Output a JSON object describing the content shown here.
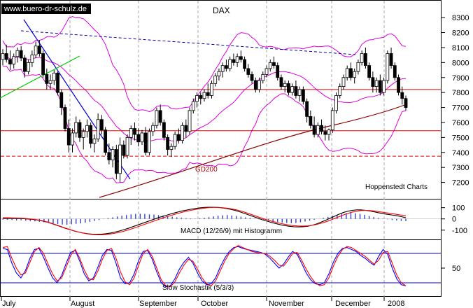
{
  "watermark": "www.buero-dr-schulz.de",
  "credit": "Hoppenstedt Charts",
  "chart_data": [
    {
      "type": "candlestick",
      "title": "DAX",
      "ylim": [
        7100,
        8380
      ],
      "ticks": [
        7200,
        7300,
        7400,
        7500,
        7600,
        7700,
        7800,
        7900,
        8000,
        8100,
        8200,
        8300
      ],
      "x_tick_labels": [
        "July",
        "August",
        "September",
        "October",
        "November",
        "December",
        "2008"
      ],
      "annotations": [
        {
          "text": "GD200"
        }
      ],
      "horizontal_lines": [
        7820,
        7545
      ],
      "dashed_levels": [
        7375
      ],
      "candles": [
        [
          8020,
          8090,
          7980,
          8060
        ],
        [
          8060,
          8120,
          8000,
          8020
        ],
        [
          8020,
          8080,
          7950,
          7990
        ],
        [
          7990,
          8060,
          7960,
          8040
        ],
        [
          8040,
          8100,
          8000,
          8080
        ],
        [
          8080,
          8110,
          8010,
          8030
        ],
        [
          8030,
          8050,
          7900,
          7940
        ],
        [
          7940,
          8020,
          7920,
          8000
        ],
        [
          8000,
          8080,
          7970,
          8050
        ],
        [
          8050,
          8140,
          8030,
          8110
        ],
        [
          8110,
          8150,
          8040,
          8060
        ],
        [
          8060,
          8080,
          7900,
          7920
        ],
        [
          7920,
          7960,
          7820,
          7860
        ],
        [
          7860,
          7920,
          7820,
          7880
        ],
        [
          7880,
          7950,
          7850,
          7930
        ],
        [
          7930,
          7940,
          7780,
          7800
        ],
        [
          7800,
          7820,
          7650,
          7700
        ],
        [
          7700,
          7720,
          7540,
          7560
        ],
        [
          7560,
          7620,
          7400,
          7450
        ],
        [
          7450,
          7560,
          7400,
          7530
        ],
        [
          7530,
          7640,
          7500,
          7600
        ],
        [
          7600,
          7620,
          7470,
          7500
        ],
        [
          7500,
          7560,
          7420,
          7540
        ],
        [
          7540,
          7620,
          7500,
          7580
        ],
        [
          7580,
          7600,
          7430,
          7460
        ],
        [
          7460,
          7520,
          7400,
          7490
        ],
        [
          7490,
          7660,
          7470,
          7620
        ],
        [
          7620,
          7650,
          7520,
          7550
        ],
        [
          7550,
          7570,
          7380,
          7400
        ],
        [
          7400,
          7460,
          7320,
          7350
        ],
        [
          7350,
          7440,
          7300,
          7420
        ],
        [
          7420,
          7450,
          7220,
          7260
        ],
        [
          7260,
          7500,
          7200,
          7450
        ],
        [
          7450,
          7480,
          7360,
          7380
        ],
        [
          7380,
          7520,
          7360,
          7500
        ],
        [
          7500,
          7580,
          7450,
          7560
        ],
        [
          7560,
          7600,
          7480,
          7520
        ],
        [
          7520,
          7560,
          7440,
          7470
        ],
        [
          7470,
          7550,
          7450,
          7530
        ],
        [
          7530,
          7570,
          7380,
          7400
        ],
        [
          7400,
          7560,
          7380,
          7540
        ],
        [
          7540,
          7600,
          7510,
          7580
        ],
        [
          7580,
          7700,
          7560,
          7680
        ],
        [
          7680,
          7720,
          7580,
          7600
        ],
        [
          7600,
          7620,
          7480,
          7500
        ],
        [
          7500,
          7520,
          7380,
          7420
        ],
        [
          7420,
          7460,
          7370,
          7440
        ],
        [
          7440,
          7540,
          7420,
          7520
        ],
        [
          7520,
          7560,
          7460,
          7480
        ],
        [
          7480,
          7600,
          7460,
          7580
        ],
        [
          7580,
          7620,
          7500,
          7540
        ],
        [
          7540,
          7700,
          7520,
          7680
        ],
        [
          7680,
          7760,
          7660,
          7740
        ],
        [
          7740,
          7800,
          7700,
          7780
        ],
        [
          7780,
          7800,
          7720,
          7760
        ],
        [
          7760,
          7820,
          7740,
          7800
        ],
        [
          7800,
          7860,
          7760,
          7780
        ],
        [
          7780,
          7880,
          7760,
          7860
        ],
        [
          7860,
          7930,
          7840,
          7910
        ],
        [
          7910,
          7960,
          7880,
          7940
        ],
        [
          7940,
          8000,
          7900,
          7980
        ],
        [
          7980,
          8020,
          7940,
          7960
        ],
        [
          7960,
          8040,
          7940,
          8020
        ],
        [
          8020,
          8060,
          7980,
          8000
        ],
        [
          8000,
          8060,
          7970,
          8040
        ],
        [
          8040,
          8080,
          8000,
          8020
        ],
        [
          8020,
          8040,
          7940,
          7960
        ],
        [
          7960,
          7990,
          7900,
          7920
        ],
        [
          7920,
          7940,
          7860,
          7880
        ],
        [
          7880,
          7900,
          7800,
          7820
        ],
        [
          7820,
          7900,
          7800,
          7880
        ],
        [
          7880,
          7940,
          7860,
          7920
        ],
        [
          7920,
          7980,
          7900,
          7960
        ],
        [
          7960,
          8020,
          7940,
          8000
        ],
        [
          8000,
          8040,
          7960,
          7980
        ],
        [
          7980,
          8000,
          7880,
          7900
        ],
        [
          7900,
          7920,
          7820,
          7840
        ],
        [
          7840,
          7880,
          7800,
          7860
        ],
        [
          7860,
          7880,
          7780,
          7800
        ],
        [
          7800,
          7860,
          7780,
          7840
        ],
        [
          7840,
          7880,
          7760,
          7780
        ],
        [
          7780,
          7840,
          7740,
          7820
        ],
        [
          7820,
          7840,
          7720,
          7740
        ],
        [
          7740,
          7760,
          7600,
          7640
        ],
        [
          7640,
          7680,
          7560,
          7580
        ],
        [
          7580,
          7640,
          7500,
          7520
        ],
        [
          7520,
          7600,
          7500,
          7580
        ],
        [
          7580,
          7620,
          7520,
          7540
        ],
        [
          7540,
          7580,
          7480,
          7520
        ],
        [
          7520,
          7560,
          7480,
          7550
        ],
        [
          7550,
          7700,
          7530,
          7680
        ],
        [
          7680,
          7800,
          7660,
          7780
        ],
        [
          7780,
          7860,
          7760,
          7840
        ],
        [
          7840,
          7920,
          7820,
          7900
        ],
        [
          7900,
          7980,
          7880,
          7960
        ],
        [
          7960,
          8000,
          7880,
          7900
        ],
        [
          7900,
          7960,
          7860,
          7940
        ],
        [
          7940,
          8020,
          7920,
          8000
        ],
        [
          8000,
          8080,
          7980,
          8060
        ],
        [
          8060,
          8100,
          7960,
          7980
        ],
        [
          7980,
          8000,
          7880,
          7900
        ],
        [
          7900,
          7940,
          7800,
          7840
        ],
        [
          7840,
          7900,
          7800,
          7880
        ],
        [
          7880,
          7920,
          7780,
          7800
        ],
        [
          7800,
          7900,
          7780,
          7880
        ],
        [
          7880,
          8080,
          7860,
          8060
        ],
        [
          8060,
          8100,
          7960,
          7980
        ],
        [
          7980,
          8000,
          7880,
          7900
        ],
        [
          7900,
          7920,
          7780,
          7800
        ],
        [
          7800,
          7840,
          7720,
          7760
        ],
        [
          7760,
          7780,
          7680,
          7700
        ]
      ]
    },
    {
      "type": "line",
      "title": "MACD (12/26/9) mit Histogramm",
      "ylim": [
        -170,
        160
      ],
      "ticks": [
        100,
        0,
        -100
      ],
      "histogram": [
        -6,
        -8,
        -10,
        -14,
        -12,
        -16,
        -20,
        -22,
        -26,
        -30,
        -34,
        -40,
        -46,
        -50,
        -52,
        -48,
        -44,
        -40,
        -34,
        -26,
        -18,
        -10,
        -2,
        6,
        14,
        22,
        28,
        34,
        40,
        44,
        46,
        44,
        40,
        38,
        34,
        30,
        26,
        20,
        14,
        10,
        6,
        4,
        2,
        6,
        10,
        16,
        22,
        28,
        32,
        34,
        30,
        26,
        20,
        14,
        8,
        2,
        -4,
        -10,
        -16,
        -22,
        -28,
        -32,
        -36,
        -38,
        -36,
        -30,
        -24,
        -16,
        -8,
        0,
        8,
        18,
        28,
        38,
        46,
        52,
        54,
        50,
        44,
        36,
        26,
        16,
        8,
        2,
        -4,
        -10,
        -14,
        -18,
        -20
      ],
      "series": [
        {
          "name": "",
          "color": "#000000",
          "values": [
            5,
            5,
            5,
            4,
            3,
            1,
            -2,
            -6,
            -12,
            -20,
            -30,
            -42,
            -56,
            -70,
            -84,
            -96,
            -108,
            -118,
            -126,
            -132,
            -136,
            -138,
            -136,
            -132,
            -126,
            -118,
            -108,
            -96,
            -84,
            -70,
            -56,
            -42,
            -28,
            -14,
            0,
            14,
            26,
            38,
            50,
            60,
            70,
            78,
            86,
            92,
            98,
            102,
            104,
            104,
            102,
            98,
            92,
            84,
            74,
            62,
            48,
            34,
            20,
            6,
            -8,
            -20,
            -32,
            -42,
            -52,
            -60,
            -66,
            -70,
            -72,
            -70,
            -66,
            -58,
            -46,
            -30,
            -14,
            4,
            22,
            40,
            56,
            68,
            76,
            80,
            80,
            76,
            70,
            62,
            54,
            46,
            40,
            34,
            28,
            20,
            10
          ]
        },
        {
          "name": "",
          "color": "#ff0000",
          "values": [
            10,
            10,
            9,
            8,
            6,
            4,
            0,
            -4,
            -10,
            -18,
            -28,
            -40,
            -54,
            -68,
            -82,
            -95,
            -107,
            -118,
            -127,
            -134,
            -139,
            -142,
            -142,
            -139,
            -134,
            -128,
            -120,
            -110,
            -98,
            -86,
            -72,
            -58,
            -44,
            -30,
            -16,
            -2,
            12,
            24,
            36,
            48,
            58,
            68,
            76,
            84,
            90,
            96,
            100,
            102,
            102,
            100,
            96,
            90,
            82,
            72,
            60,
            46,
            32,
            18,
            4,
            -8,
            -20,
            -30,
            -40,
            -48,
            -56,
            -60,
            -64,
            -64,
            -62,
            -58,
            -50,
            -40,
            -28,
            -14,
            2,
            18,
            34,
            48,
            60,
            68,
            74,
            76,
            74,
            70,
            64,
            58,
            52,
            46,
            40,
            34,
            28
          ]
        }
      ]
    },
    {
      "type": "line",
      "title": "Slow Stochastik (5/3/3)",
      "ylim": [
        0,
        100
      ],
      "ticks": [
        50
      ],
      "hlines": [
        80,
        20
      ],
      "series": [
        {
          "name": "",
          "color": "#0000ff",
          "values": [
            90,
            88,
            60,
            40,
            30,
            45,
            70,
            88,
            90,
            72,
            50,
            30,
            20,
            35,
            60,
            82,
            86,
            64,
            38,
            24,
            30,
            52,
            76,
            88,
            86,
            60,
            30,
            18,
            20,
            38,
            66,
            84,
            86,
            68,
            42,
            20,
            12,
            14,
            28,
            48,
            62,
            72,
            60,
            40,
            24,
            16,
            18,
            30,
            52,
            70,
            84,
            92,
            94,
            90,
            88,
            86,
            84,
            82,
            78,
            70,
            60,
            50,
            58,
            72,
            84,
            78,
            60,
            40,
            26,
            18,
            16,
            20,
            38,
            62,
            80,
            90,
            92,
            88,
            84,
            76,
            70,
            62,
            56,
            74,
            88,
            78,
            50,
            28,
            16,
            14
          ]
        },
        {
          "name": "",
          "color": "#ff0000",
          "values": [
            92,
            94,
            70,
            50,
            36,
            40,
            62,
            84,
            92,
            80,
            58,
            38,
            24,
            30,
            52,
            76,
            88,
            70,
            46,
            28,
            26,
            44,
            68,
            86,
            90,
            70,
            42,
            22,
            16,
            30,
            56,
            80,
            88,
            74,
            50,
            26,
            14,
            12,
            22,
            40,
            56,
            68,
            64,
            48,
            30,
            18,
            14,
            24,
            44,
            64,
            80,
            90,
            96,
            92,
            88,
            84,
            82,
            80,
            80,
            74,
            66,
            56,
            54,
            66,
            80,
            82,
            66,
            48,
            32,
            20,
            14,
            16,
            30,
            54,
            74,
            88,
            94,
            92,
            86,
            80,
            74,
            66,
            58,
            66,
            82,
            84,
            60,
            36,
            20,
            14
          ]
        }
      ]
    }
  ]
}
